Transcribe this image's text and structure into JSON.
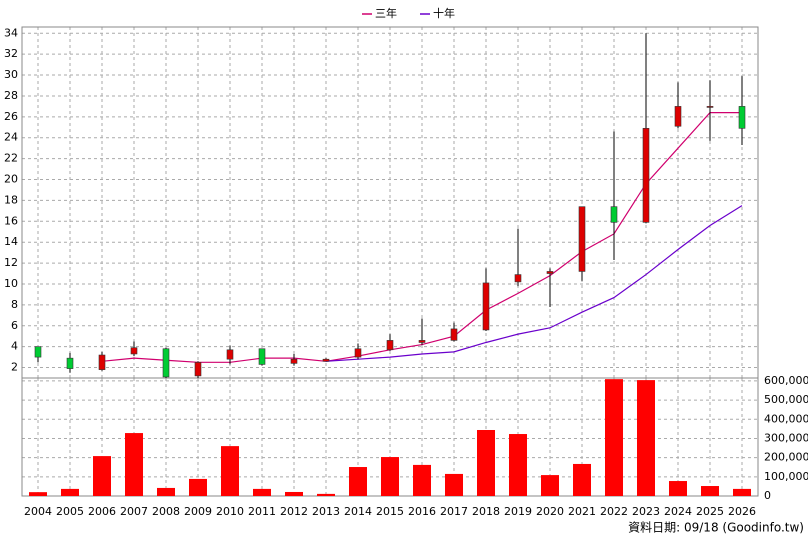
{
  "chart_data": [
    {
      "type": "candlestick",
      "categories": [
        "2004",
        "2005",
        "2006",
        "2007",
        "2008",
        "2009",
        "2010",
        "2011",
        "2012",
        "2013",
        "2014",
        "2015",
        "2016",
        "2017",
        "2018",
        "2019",
        "2020",
        "2021",
        "2022",
        "2023",
        "2024",
        "2025",
        "2026"
      ],
      "open": [
        4.0,
        2.9,
        1.8,
        3.3,
        3.8,
        1.2,
        2.8,
        3.8,
        2.4,
        2.6,
        3.0,
        3.7,
        4.4,
        4.6,
        5.6,
        10.2,
        11.0,
        11.2,
        17.4,
        15.9,
        25.1,
        26.9,
        27.0
      ],
      "high": [
        4.0,
        3.4,
        3.5,
        4.5,
        3.9,
        2.6,
        4.1,
        3.8,
        3.3,
        2.9,
        4.3,
        5.2,
        6.7,
        6.3,
        11.5,
        15.3,
        11.5,
        17.4,
        24.6,
        34.0,
        29.3,
        29.5,
        29.9
      ],
      "low": [
        2.5,
        1.5,
        1.7,
        3.1,
        1.0,
        1.0,
        2.3,
        2.2,
        2.2,
        2.6,
        2.8,
        3.6,
        4.2,
        4.5,
        5.5,
        9.8,
        7.8,
        10.3,
        12.3,
        15.8,
        24.9,
        23.7,
        23.3
      ],
      "close": [
        3.0,
        1.9,
        3.2,
        3.9,
        1.1,
        2.5,
        3.7,
        2.3,
        2.8,
        2.8,
        3.8,
        4.6,
        4.6,
        5.7,
        10.1,
        10.9,
        11.2,
        17.4,
        15.9,
        24.9,
        27.0,
        27.0,
        24.9
      ],
      "up_color": "#dd0000",
      "down_color": "#00cc33",
      "series": [
        {
          "name": "三年",
          "color": "#d0006e",
          "values": [
            null,
            null,
            2.6,
            2.9,
            2.7,
            2.5,
            2.5,
            2.9,
            2.9,
            2.6,
            3.1,
            3.7,
            4.2,
            5.0,
            7.5,
            9.1,
            10.8,
            13.1,
            14.8,
            19.6,
            23.0,
            26.4,
            26.4
          ]
        },
        {
          "name": "十年",
          "color": "#6a00cc",
          "values": [
            null,
            null,
            null,
            null,
            null,
            null,
            null,
            null,
            null,
            2.6,
            2.8,
            3.0,
            3.3,
            3.5,
            4.4,
            5.2,
            5.8,
            7.3,
            8.7,
            10.9,
            13.3,
            15.6,
            17.5
          ]
        }
      ],
      "ylim": [
        1,
        34.6
      ],
      "yticks": [
        2,
        4,
        6,
        8,
        10,
        12,
        14,
        16,
        18,
        20,
        22,
        24,
        26,
        28,
        30,
        32,
        34
      ],
      "grid": true
    },
    {
      "type": "bar",
      "color": "#ff0000",
      "values": [
        20000,
        37000,
        208000,
        328000,
        42000,
        89000,
        260000,
        37000,
        21000,
        11000,
        151000,
        203000,
        162000,
        115000,
        344000,
        323000,
        109000,
        167000,
        609000,
        604000,
        78000,
        52000,
        37000
      ],
      "ylim": [
        0,
        615000
      ],
      "yticks": [
        0,
        {
          "value": 100000,
          "label": "100,000"
        },
        {
          "value": 200000,
          "label": "200,000"
        },
        {
          "value": 300000,
          "label": "300,000"
        },
        {
          "value": 400000,
          "label": "400,000"
        },
        {
          "value": 500000,
          "label": "500,000"
        },
        {
          "value": 600000,
          "label": "600,000"
        }
      ],
      "grid": true,
      "footnote": "資料日期: 09/18 (Goodinfo.tw)"
    }
  ]
}
